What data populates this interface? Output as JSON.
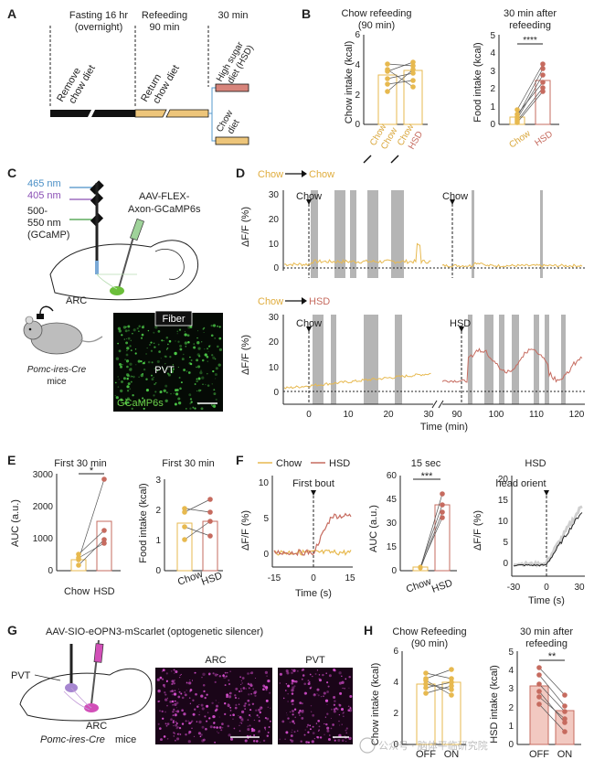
{
  "panelA": {
    "label": "A",
    "fasting": "Fasting 16 hr",
    "overnight": "(overnight)",
    "refeeding": "Refeeding",
    "ninety": "90 min",
    "thirty": "30 min",
    "remove1": "Remove",
    "remove2": "chow diet",
    "return1": "Return",
    "return2": "chow diet",
    "hsd1": "High sugar",
    "hsd2": "diet (HSD)",
    "chowdiet1": "Chow",
    "chowdiet2": "diet"
  },
  "panelB": {
    "label": "B",
    "left": {
      "title1": "Chow refeeding",
      "title2": "(90 min)",
      "ylabel": "Chow intake (kcal)",
      "yticks": [
        "0",
        "2",
        "4",
        "6"
      ],
      "cat1a": "Chow",
      "cat1b": "Chow",
      "cat2a": "Chow",
      "cat2b": "HSD"
    },
    "right": {
      "title1": "30 min after",
      "title2": "refeeding",
      "ylabel": "Food intake (kcal)",
      "yticks": [
        "0",
        "1",
        "2",
        "3",
        "4",
        "5"
      ],
      "sig": "****",
      "cat1": "Chow",
      "cat2": "HSD"
    }
  },
  "panelC": {
    "label": "C",
    "nm465": "465 nm",
    "nm405": "405 nm",
    "nm500a": "500-",
    "nm500b": "550 nm",
    "gcamp": "(GCaMP)",
    "virus1": "AAV-FLEX-",
    "virus2": "Axon-GCaMP6s",
    "arc": "ARC",
    "fiber": "Fiber",
    "pvt": "PVT",
    "gcamp6s": "GCaMP6s",
    "mouse1": "Pomc-ires-Cre",
    "mouse2": "mice"
  },
  "panelD": {
    "label": "D",
    "top_a": "Chow",
    "top_b": "Chow",
    "bot_a": "Chow",
    "bot_b": "HSD",
    "ylabel": "ΔF/F (%)",
    "yticks": [
      "0",
      "10",
      "20",
      "30"
    ],
    "ev_chow1": "Chow",
    "ev_chow2": "Chow",
    "ev_chow3": "Chow",
    "ev_hsd": "HSD",
    "xticks": [
      "0",
      "10",
      "20",
      "30",
      "90",
      "100",
      "110",
      "120"
    ],
    "xlabel": "Time (min)"
  },
  "panelE": {
    "label": "E",
    "left_title": "First 30 min",
    "left_ylabel": "AUC (a.u.)",
    "left_yticks": [
      "0",
      "1000",
      "2000",
      "3000"
    ],
    "sig": "*",
    "cat1": "Chow",
    "cat2": "HSD",
    "right_title": "First 30 min",
    "right_ylabel": "Food intake (kcal)",
    "right_yticks": [
      "0",
      "1",
      "2",
      "3"
    ],
    "rcat1": "Chow",
    "rcat2": "HSD"
  },
  "panelF": {
    "label": "F",
    "legend_chow": "Chow",
    "legend_hsd": "HSD",
    "first_bout": "First bout",
    "ylabel": "ΔF/F (%)",
    "yticks1": [
      "0",
      "5",
      "10"
    ],
    "xticks1": [
      "-15",
      "0",
      "15"
    ],
    "xlabel": "Time (s)",
    "mid_title": "15 sec",
    "mid_ylabel": "AUC (a.u.)",
    "mid_yticks": [
      "0",
      "15",
      "30",
      "45",
      "60"
    ],
    "sig": "***",
    "cat1": "Chow",
    "cat2": "HSD",
    "right_title": "HSD",
    "head_orient": "head orient",
    "yticks3": [
      "0",
      "5",
      "10",
      "15",
      "20"
    ],
    "xticks3": [
      "-30",
      "0",
      "30"
    ]
  },
  "panelG": {
    "label": "G",
    "title": "AAV-SIO-eOPN3-mScarlet (optogenetic silencer)",
    "pvt": "PVT",
    "arc": "ARC",
    "mouse1": "Pomc-ires-Cre",
    "mouse2": "mice",
    "img_arc": "ARC",
    "img_pvt": "PVT"
  },
  "panelH": {
    "label": "H",
    "left_title1": "Chow Refeeding",
    "left_title2": "(90 min)",
    "left_ylabel": "Chow intake (kcal)",
    "left_yticks": [
      "0",
      "2",
      "4",
      "6"
    ],
    "right_title1": "30 min after",
    "right_title2": "refeeding",
    "right_ylabel": "HSD intake (kcal)",
    "right_yticks": [
      "0",
      "1",
      "2",
      "3",
      "4",
      "5"
    ],
    "sig": "**",
    "cat1": "OFF",
    "cat2": "ON",
    "rcat1": "OFF",
    "rcat2": "ON"
  },
  "watermark": "公众号 · 脑体平临研究院",
  "chart_data": [
    {
      "panel": "B-left",
      "type": "bar",
      "categories": [
        "Chow→Chow",
        "Chow→HSD"
      ],
      "values": [
        3.3,
        3.6
      ],
      "ylabel": "Chow intake (kcal)",
      "ylim": [
        0,
        6
      ]
    },
    {
      "panel": "B-right",
      "type": "bar",
      "categories": [
        "Chow",
        "HSD"
      ],
      "values": [
        0.4,
        2.5
      ],
      "ylabel": "Food intake (kcal)",
      "ylim": [
        0,
        5
      ]
    },
    {
      "panel": "E-left",
      "type": "bar",
      "categories": [
        "Chow",
        "HSD"
      ],
      "values": [
        350,
        1550
      ],
      "ylabel": "AUC (a.u.)",
      "ylim": [
        0,
        3000
      ]
    },
    {
      "panel": "E-right",
      "type": "bar",
      "categories": [
        "Chow",
        "HSD"
      ],
      "values": [
        1.55,
        1.65
      ],
      "ylabel": "Food intake (kcal)",
      "ylim": [
        0,
        3
      ]
    },
    {
      "panel": "F-mid",
      "type": "bar",
      "categories": [
        "Chow",
        "HSD"
      ],
      "values": [
        2,
        42
      ],
      "ylabel": "AUC (a.u.)",
      "ylim": [
        0,
        60
      ]
    },
    {
      "panel": "H-left",
      "type": "bar",
      "categories": [
        "OFF",
        "ON"
      ],
      "values": [
        3.9,
        4.0
      ],
      "ylabel": "Chow intake (kcal)",
      "ylim": [
        0,
        6
      ]
    },
    {
      "panel": "H-right",
      "type": "bar",
      "categories": [
        "OFF",
        "ON"
      ],
      "values": [
        3.1,
        1.8
      ],
      "ylabel": "HSD intake (kcal)",
      "ylim": [
        0,
        5
      ]
    }
  ]
}
